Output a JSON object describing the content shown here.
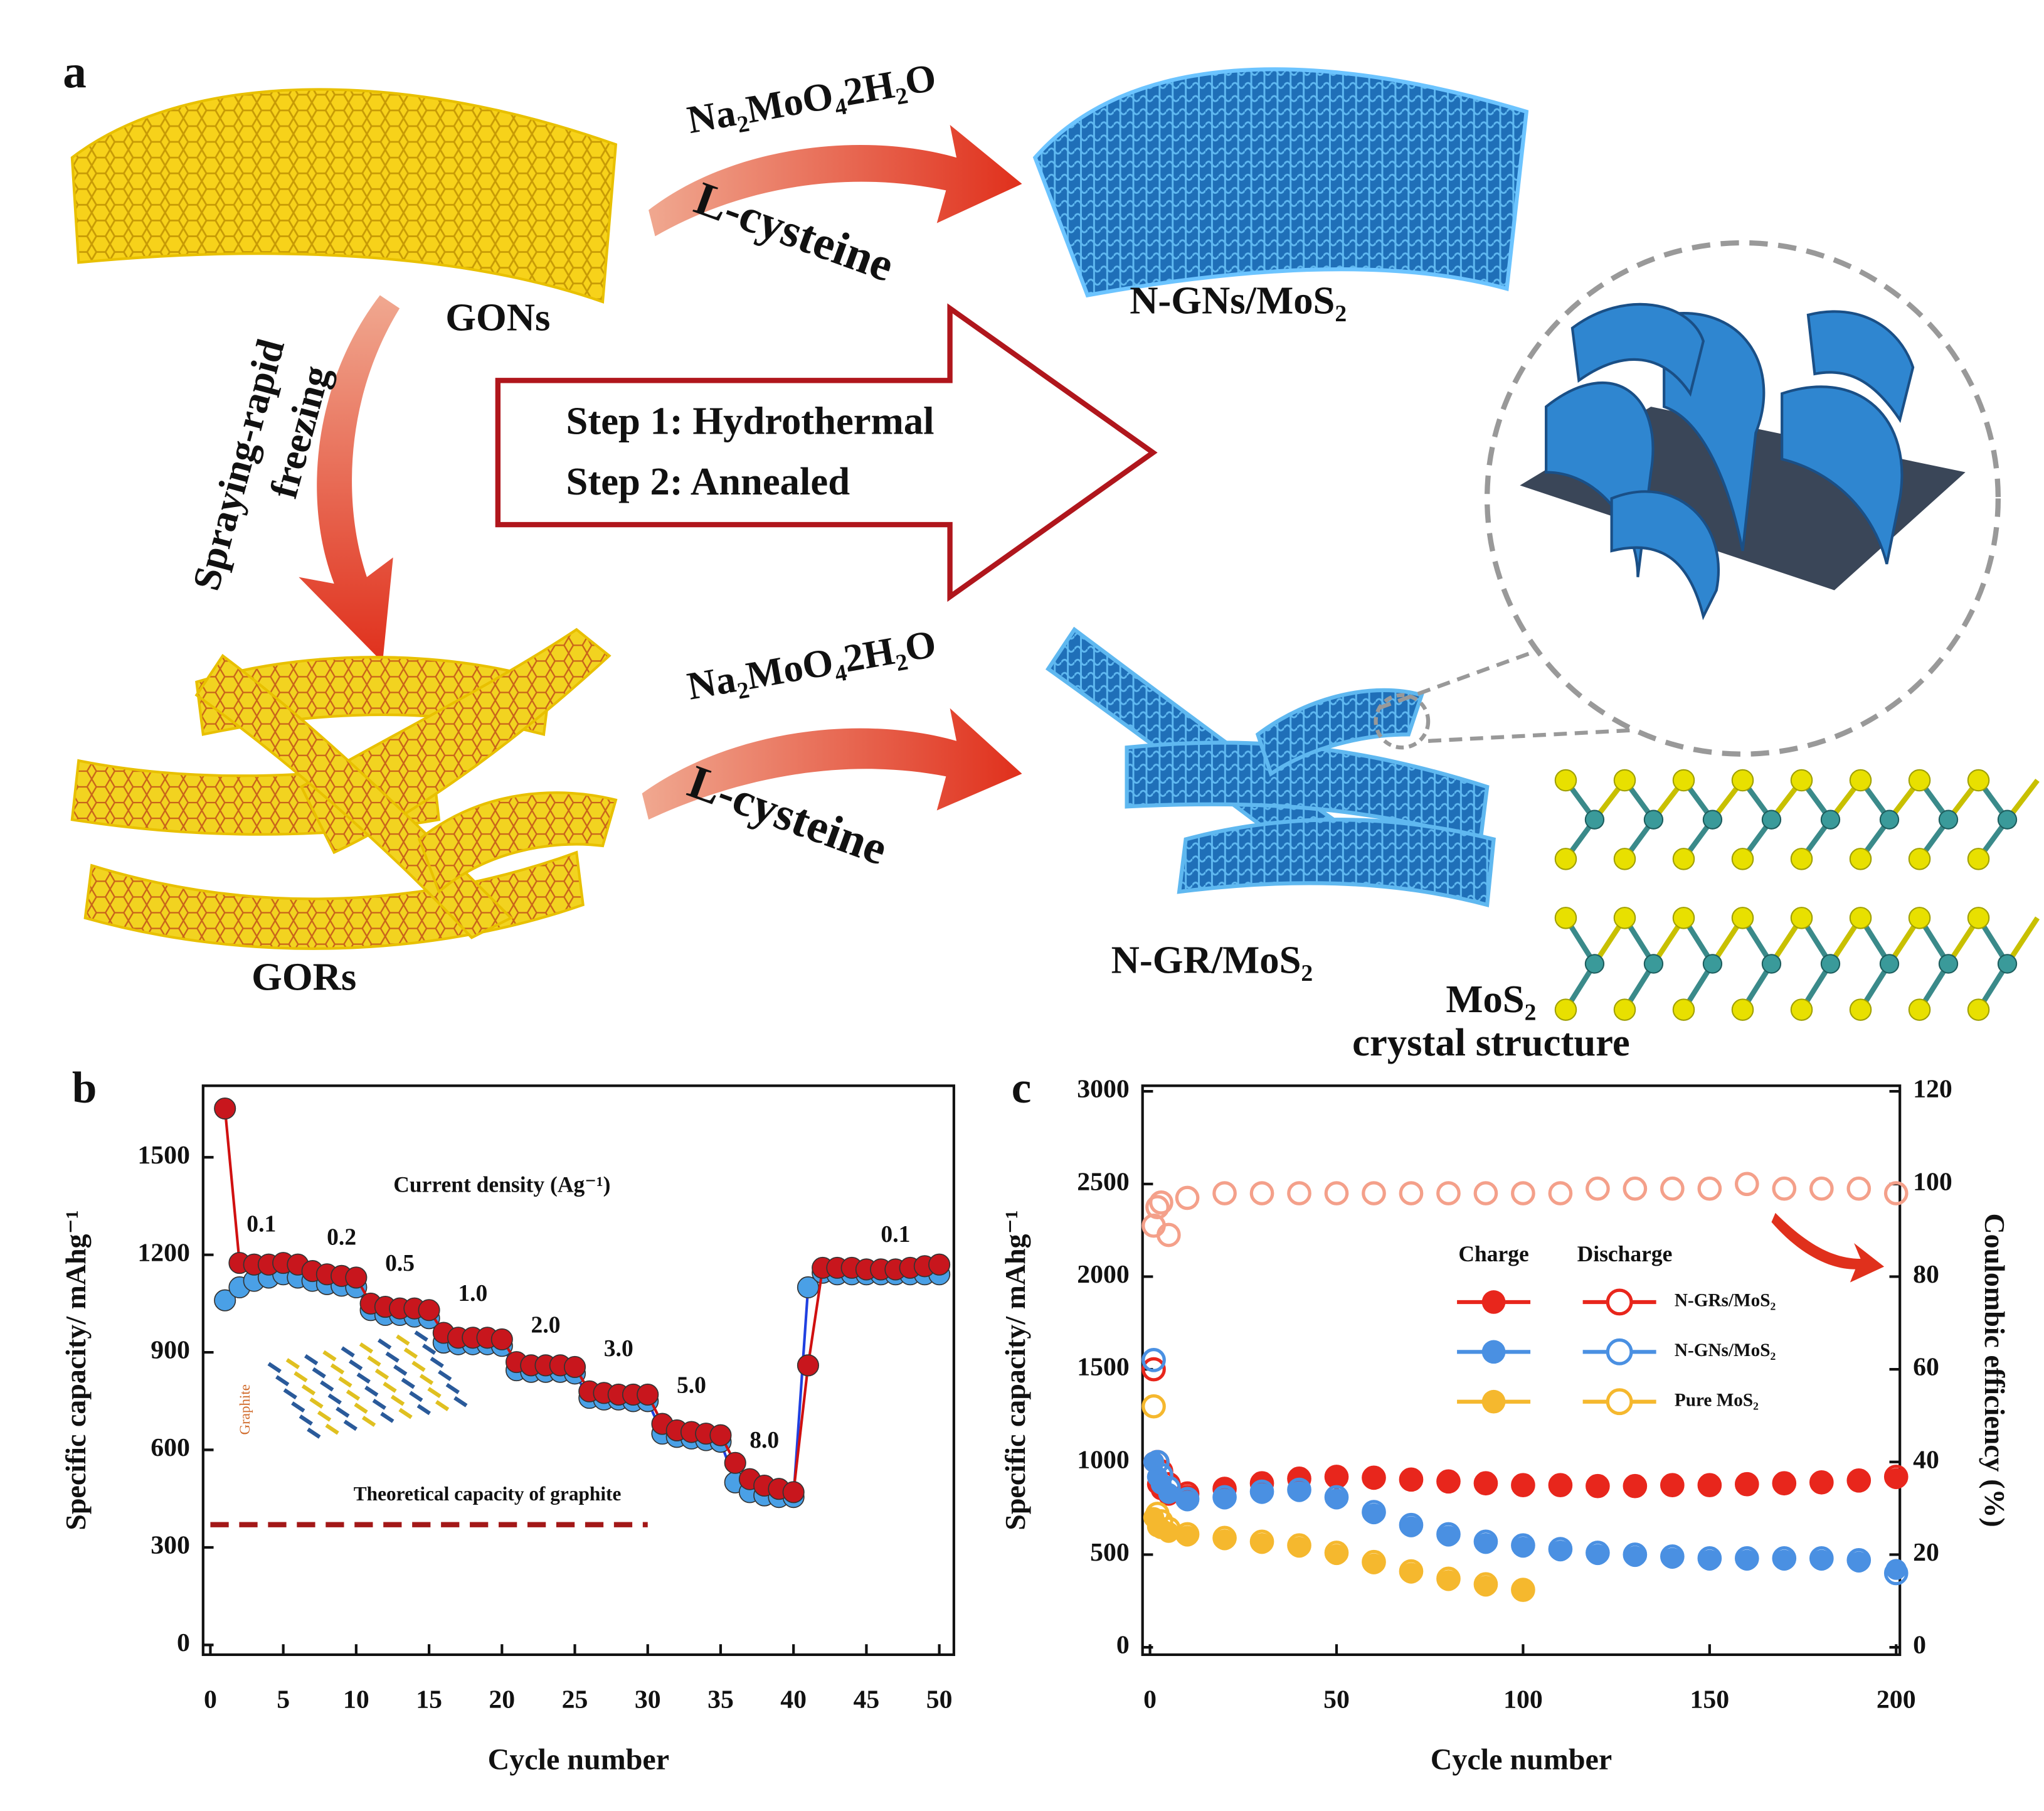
{
  "diagram": {
    "panel_label": "a",
    "reagent_top": "Na₂MoO₄2H₂O",
    "additive_top": "L-cysteine",
    "reagent_bottom": "Na₂MoO₄2H₂O",
    "additive_bottom": "L-cysteine",
    "start_sheet": "GONs",
    "product_sheet": "N-GNs/MoS₂",
    "process_line1": "Spraying-rapid",
    "process_line2": "freezing",
    "step1": "Step 1: Hydrothermal",
    "step2": "Step 2: Annealed",
    "start_ribbon": "GORs",
    "product_ribbon": "N-GR/MoS₂",
    "crystal_title": "MoS₂",
    "crystal_subtitle": "crystal structure"
  },
  "chart_data": [
    {
      "type": "line",
      "label": "b",
      "annotation": "Current density (Ag⁻¹)",
      "rate_labels": [
        "0.1",
        "0.2",
        "0.5",
        "1.0",
        "2.0",
        "3.0",
        "5.0",
        "8.0",
        "0.1"
      ],
      "inset_label": "Graphite",
      "reference_line": {
        "value": 370,
        "label": "Theoretical capacity of graphite",
        "color": "#a31818"
      },
      "x_label": "Cycle number",
      "y_label": "Specific capacity/ mAhg⁻¹",
      "xlim": [
        -0.5,
        51
      ],
      "ylim": [
        -30,
        1720
      ],
      "xticks": [
        0,
        5,
        10,
        15,
        20,
        25,
        30,
        35,
        40,
        45,
        50
      ],
      "yticks": [
        0,
        300,
        600,
        900,
        1200,
        1500
      ],
      "x": [
        1,
        2,
        3,
        4,
        5,
        6,
        7,
        8,
        9,
        10,
        11,
        12,
        13,
        14,
        15,
        16,
        17,
        18,
        19,
        20,
        21,
        22,
        23,
        24,
        25,
        26,
        27,
        28,
        29,
        30,
        31,
        32,
        33,
        34,
        35,
        36,
        37,
        38,
        39,
        40,
        41,
        42,
        43,
        44,
        45,
        46,
        47,
        48,
        49,
        50
      ],
      "series": [
        {
          "color": "#4aa0e6",
          "line_color": "#2040e0",
          "values": [
            1060,
            1100,
            1120,
            1130,
            1140,
            1130,
            1120,
            1110,
            1105,
            1100,
            1030,
            1015,
            1015,
            1010,
            1005,
            930,
            925,
            925,
            925,
            920,
            845,
            840,
            840,
            840,
            835,
            760,
            755,
            755,
            750,
            750,
            650,
            640,
            635,
            630,
            625,
            500,
            470,
            460,
            455,
            455,
            1100,
            1145,
            1140,
            1140,
            1140,
            1140,
            1140,
            1140,
            1140,
            1140
          ]
        },
        {
          "color": "#c8161d",
          "line_color": "#d01010",
          "values": [
            1650,
            1175,
            1170,
            1170,
            1175,
            1170,
            1150,
            1140,
            1135,
            1130,
            1050,
            1040,
            1035,
            1035,
            1030,
            960,
            945,
            945,
            945,
            940,
            870,
            860,
            860,
            860,
            855,
            780,
            775,
            770,
            770,
            770,
            680,
            660,
            655,
            650,
            645,
            560,
            510,
            490,
            480,
            470,
            860,
            1160,
            1160,
            1160,
            1155,
            1155,
            1155,
            1160,
            1165,
            1170
          ]
        }
      ]
    },
    {
      "type": "scatter",
      "label": "c",
      "x_label": "Cycle number",
      "y_label": "Specific capacity/ mAhg⁻¹",
      "y2_label": "Coulombic efficiency (%)",
      "legend_headers": [
        "Charge",
        "Discharge"
      ],
      "xlim": [
        -2,
        201
      ],
      "ylim": [
        -40,
        3030
      ],
      "y2lim": [
        -1.6,
        121.2
      ],
      "xticks": [
        0,
        50,
        100,
        150,
        200
      ],
      "yticks": [
        0,
        500,
        1000,
        1500,
        2000,
        2500,
        3000
      ],
      "y2ticks": [
        0,
        20,
        40,
        60,
        80,
        100,
        120
      ],
      "series": [
        {
          "name": "N-GRs/MoS₂",
          "color": "#e8261c",
          "x": [
            1,
            2,
            3,
            5,
            10,
            20,
            30,
            40,
            50,
            60,
            70,
            80,
            90,
            100,
            110,
            120,
            130,
            140,
            150,
            160,
            170,
            180,
            190,
            200
          ],
          "charge": [
            1000,
            880,
            850,
            820,
            820,
            850,
            880,
            905,
            915,
            910,
            900,
            890,
            880,
            870,
            870,
            865,
            865,
            870,
            870,
            875,
            880,
            885,
            895,
            910
          ],
          "discharge": [
            1500,
            1000,
            950,
            880,
            830,
            855,
            885,
            910,
            920,
            915,
            905,
            895,
            885,
            875,
            875,
            870,
            870,
            875,
            875,
            880,
            885,
            890,
            900,
            920
          ]
        },
        {
          "name": "N-GNs/MoS₂",
          "color": "#4a90e2",
          "x": [
            1,
            2,
            3,
            5,
            10,
            20,
            30,
            40,
            50,
            60,
            70,
            80,
            90,
            100,
            110,
            120,
            130,
            140,
            150,
            160,
            170,
            180,
            190,
            200
          ],
          "charge": [
            1000,
            920,
            880,
            830,
            790,
            800,
            830,
            840,
            800,
            720,
            650,
            600,
            560,
            540,
            520,
            500,
            490,
            480,
            470,
            470,
            470,
            470,
            460,
            420
          ],
          "discharge": [
            1550,
            1000,
            930,
            860,
            800,
            810,
            840,
            850,
            810,
            730,
            660,
            610,
            570,
            550,
            530,
            510,
            500,
            490,
            480,
            480,
            480,
            480,
            470,
            400
          ]
        },
        {
          "name": "Pure MoS₂",
          "color": "#f5b82e",
          "x": [
            1,
            2,
            3,
            5,
            10,
            20,
            30,
            40,
            50,
            60,
            70,
            80,
            90,
            100
          ],
          "charge": [
            700,
            650,
            640,
            620,
            600,
            580,
            560,
            540,
            500,
            450,
            400,
            360,
            330,
            310
          ],
          "discharge": [
            1300,
            720,
            680,
            640,
            610,
            590,
            570,
            550,
            510,
            460,
            410,
            370,
            340,
            310
          ]
        },
        {
          "color": "#f4a08a",
          "axis": "y2",
          "x": [
            1,
            2,
            3,
            5,
            10,
            20,
            30,
            40,
            50,
            60,
            70,
            80,
            90,
            100,
            110,
            120,
            130,
            140,
            150,
            160,
            170,
            180,
            190,
            200
          ],
          "values": [
            91,
            95,
            96,
            89,
            97,
            98,
            98,
            98,
            98,
            98,
            98,
            98,
            98,
            98,
            98,
            99,
            99,
            99,
            99,
            100,
            99,
            99,
            99,
            98
          ]
        }
      ]
    }
  ]
}
